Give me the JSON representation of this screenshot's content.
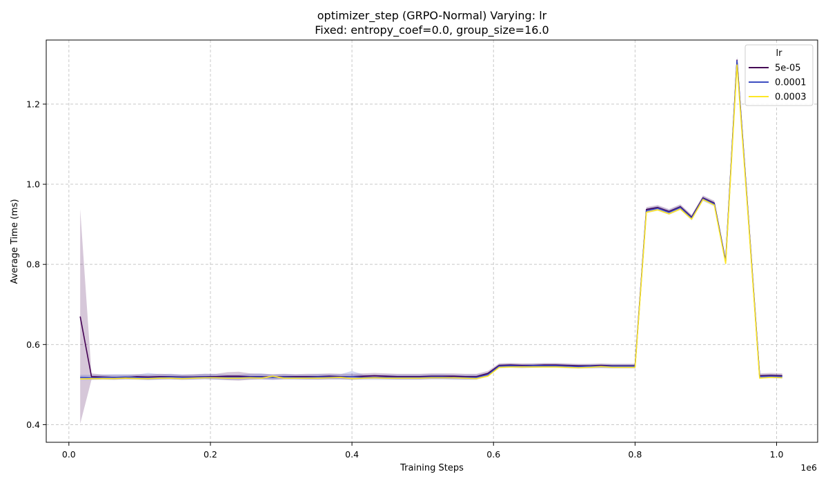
{
  "chart_data": {
    "type": "line",
    "title_line1": "optimizer_step (GRPO-Normal) Varying: lr",
    "title_line2": "Fixed: entropy_coef=0.0, group_size=16.0",
    "xlabel": "Training Steps",
    "ylabel": "Average Time (ms)",
    "x_scale_label": "1e6",
    "xlim": [
      -0.032,
      1.058
    ],
    "ylim": [
      0.356,
      1.36
    ],
    "xticks": [
      0.0,
      0.2,
      0.4,
      0.6,
      0.8,
      1.0
    ],
    "xtick_labels": [
      "0.0",
      "0.2",
      "0.4",
      "0.6",
      "0.8",
      "1.0"
    ],
    "yticks": [
      0.4,
      0.6,
      0.8,
      1.0,
      1.2
    ],
    "ytick_labels": [
      "0.4",
      "0.6",
      "0.8",
      "1.0",
      "1.2"
    ],
    "grid": true,
    "legend_title": "lr",
    "legend_position": "top-right",
    "x": [
      0.016,
      0.032,
      0.048,
      0.064,
      0.08,
      0.096,
      0.112,
      0.128,
      0.144,
      0.16,
      0.176,
      0.192,
      0.208,
      0.224,
      0.24,
      0.256,
      0.272,
      0.288,
      0.304,
      0.32,
      0.336,
      0.352,
      0.368,
      0.384,
      0.4,
      0.416,
      0.432,
      0.448,
      0.464,
      0.48,
      0.496,
      0.512,
      0.528,
      0.544,
      0.56,
      0.576,
      0.592,
      0.608,
      0.624,
      0.64,
      0.656,
      0.672,
      0.688,
      0.704,
      0.72,
      0.736,
      0.752,
      0.768,
      0.784,
      0.8,
      0.816,
      0.832,
      0.848,
      0.864,
      0.88,
      0.896,
      0.912,
      0.928,
      0.944,
      0.96,
      0.976,
      0.992,
      1.008
    ],
    "series": [
      {
        "name": "5e-05",
        "color": "#440154",
        "values": [
          0.67,
          0.52,
          0.519,
          0.518,
          0.518,
          0.52,
          0.519,
          0.52,
          0.52,
          0.519,
          0.519,
          0.52,
          0.52,
          0.521,
          0.521,
          0.52,
          0.52,
          0.519,
          0.52,
          0.52,
          0.52,
          0.52,
          0.521,
          0.52,
          0.52,
          0.521,
          0.522,
          0.521,
          0.52,
          0.52,
          0.52,
          0.521,
          0.521,
          0.521,
          0.52,
          0.52,
          0.528,
          0.548,
          0.549,
          0.548,
          0.548,
          0.549,
          0.549,
          0.548,
          0.547,
          0.547,
          0.548,
          0.547,
          0.547,
          0.547,
          0.937,
          0.942,
          0.932,
          0.944,
          0.918,
          0.966,
          0.953,
          0.808,
          1.31,
          0.92,
          0.522,
          0.523,
          0.522
        ],
        "band_lower": [
          0.402,
          0.512,
          0.513,
          0.512,
          0.513,
          0.513,
          0.512,
          0.513,
          0.513,
          0.512,
          0.513,
          0.514,
          0.513,
          0.511,
          0.51,
          0.512,
          0.513,
          0.512,
          0.513,
          0.514,
          0.513,
          0.512,
          0.513,
          0.513,
          0.512,
          0.514,
          0.515,
          0.514,
          0.513,
          0.513,
          0.513,
          0.514,
          0.514,
          0.514,
          0.513,
          0.513,
          0.522,
          0.542,
          0.543,
          0.542,
          0.542,
          0.543,
          0.543,
          0.542,
          0.541,
          0.541,
          0.542,
          0.541,
          0.541,
          0.541,
          0.93,
          0.936,
          0.926,
          0.938,
          0.911,
          0.96,
          0.947,
          0.802,
          1.302,
          0.912,
          0.516,
          0.517,
          0.516
        ],
        "band_upper": [
          0.938,
          0.528,
          0.525,
          0.524,
          0.524,
          0.526,
          0.525,
          0.527,
          0.526,
          0.525,
          0.526,
          0.527,
          0.527,
          0.531,
          0.532,
          0.528,
          0.527,
          0.526,
          0.527,
          0.526,
          0.527,
          0.527,
          0.528,
          0.527,
          0.527,
          0.528,
          0.529,
          0.528,
          0.527,
          0.527,
          0.527,
          0.528,
          0.528,
          0.528,
          0.527,
          0.527,
          0.534,
          0.553,
          0.554,
          0.553,
          0.553,
          0.554,
          0.554,
          0.553,
          0.552,
          0.552,
          0.553,
          0.552,
          0.552,
          0.552,
          0.943,
          0.948,
          0.938,
          0.95,
          0.924,
          0.972,
          0.959,
          0.814,
          1.318,
          0.928,
          0.528,
          0.529,
          0.528
        ]
      },
      {
        "name": "0.0001",
        "color": "#3b4cc0",
        "values": [
          0.518,
          0.517,
          0.518,
          0.518,
          0.519,
          0.518,
          0.517,
          0.518,
          0.519,
          0.518,
          0.518,
          0.519,
          0.518,
          0.518,
          0.518,
          0.519,
          0.519,
          0.518,
          0.519,
          0.518,
          0.518,
          0.519,
          0.519,
          0.519,
          0.52,
          0.518,
          0.518,
          0.518,
          0.518,
          0.518,
          0.518,
          0.519,
          0.519,
          0.518,
          0.518,
          0.518,
          0.525,
          0.546,
          0.547,
          0.546,
          0.547,
          0.547,
          0.547,
          0.546,
          0.545,
          0.546,
          0.546,
          0.546,
          0.546,
          0.546,
          0.934,
          0.94,
          0.93,
          0.942,
          0.916,
          0.964,
          0.951,
          0.806,
          1.308,
          0.917,
          0.52,
          0.521,
          0.52
        ],
        "band_lower": [
          0.512,
          0.512,
          0.512,
          0.512,
          0.513,
          0.512,
          0.511,
          0.512,
          0.513,
          0.512,
          0.512,
          0.513,
          0.512,
          0.512,
          0.512,
          0.513,
          0.513,
          0.512,
          0.513,
          0.512,
          0.512,
          0.513,
          0.513,
          0.513,
          0.512,
          0.512,
          0.512,
          0.512,
          0.512,
          0.512,
          0.512,
          0.513,
          0.513,
          0.512,
          0.512,
          0.512,
          0.52,
          0.541,
          0.542,
          0.541,
          0.542,
          0.542,
          0.542,
          0.541,
          0.54,
          0.541,
          0.541,
          0.541,
          0.541,
          0.541,
          0.928,
          0.934,
          0.924,
          0.936,
          0.91,
          0.958,
          0.945,
          0.8,
          1.3,
          0.91,
          0.515,
          0.516,
          0.515
        ],
        "band_upper": [
          0.524,
          0.524,
          0.525,
          0.526,
          0.526,
          0.525,
          0.529,
          0.526,
          0.527,
          0.525,
          0.525,
          0.527,
          0.526,
          0.525,
          0.525,
          0.527,
          0.528,
          0.525,
          0.526,
          0.525,
          0.525,
          0.526,
          0.526,
          0.526,
          0.534,
          0.525,
          0.525,
          0.525,
          0.525,
          0.525,
          0.525,
          0.526,
          0.526,
          0.525,
          0.525,
          0.525,
          0.53,
          0.551,
          0.552,
          0.551,
          0.552,
          0.552,
          0.552,
          0.551,
          0.55,
          0.551,
          0.551,
          0.551,
          0.551,
          0.551,
          0.94,
          0.946,
          0.936,
          0.948,
          0.922,
          0.97,
          0.957,
          0.812,
          1.316,
          0.924,
          0.525,
          0.526,
          0.525
        ]
      },
      {
        "name": "0.0003",
        "color": "#fde725",
        "values": [
          0.514,
          0.515,
          0.515,
          0.515,
          0.516,
          0.515,
          0.515,
          0.516,
          0.516,
          0.515,
          0.516,
          0.517,
          0.517,
          0.516,
          0.516,
          0.517,
          0.516,
          0.521,
          0.516,
          0.516,
          0.516,
          0.516,
          0.517,
          0.518,
          0.515,
          0.516,
          0.517,
          0.516,
          0.516,
          0.516,
          0.516,
          0.517,
          0.517,
          0.517,
          0.516,
          0.515,
          0.521,
          0.543,
          0.544,
          0.544,
          0.544,
          0.544,
          0.544,
          0.543,
          0.542,
          0.543,
          0.545,
          0.543,
          0.543,
          0.543,
          0.93,
          0.936,
          0.926,
          0.938,
          0.913,
          0.962,
          0.948,
          0.802,
          1.298,
          0.913,
          0.516,
          0.518,
          0.517
        ]
      }
    ]
  }
}
